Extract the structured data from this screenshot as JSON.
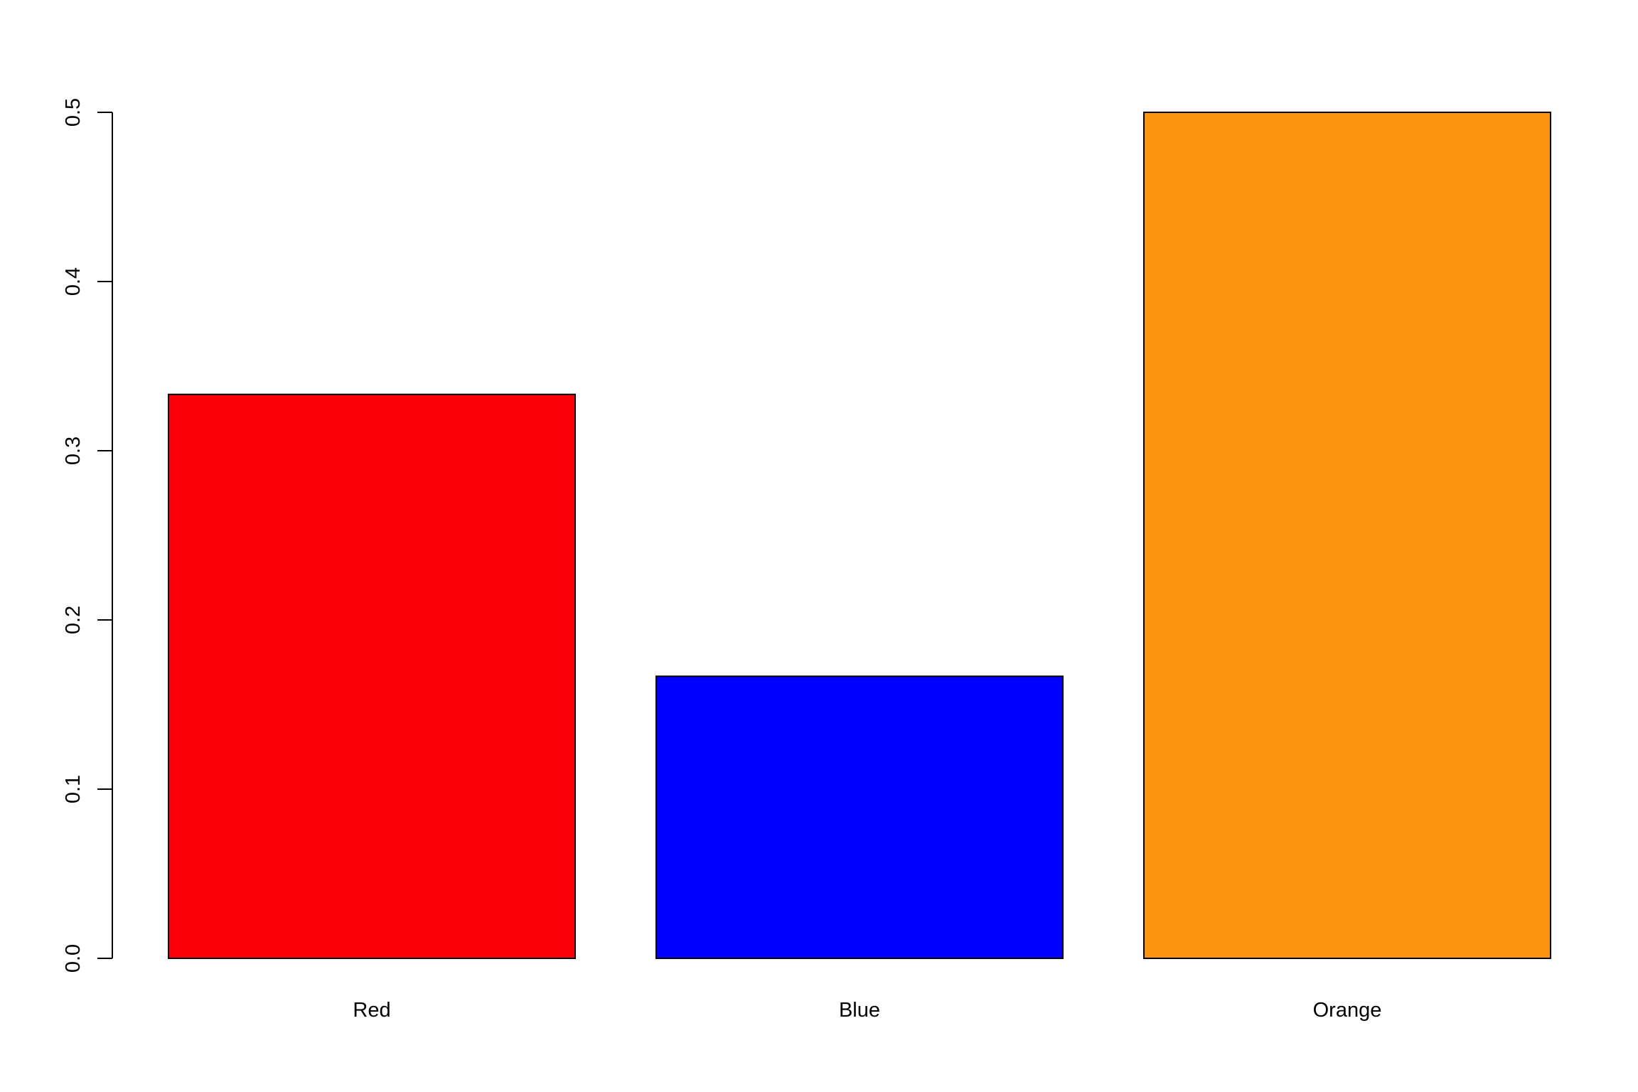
{
  "chart_data": {
    "type": "bar",
    "categories": [
      "Red",
      "Blue",
      "Orange"
    ],
    "values": [
      0.3333,
      0.1667,
      0.5
    ],
    "colors": [
      "#fa0007",
      "#0000ff",
      "#fd9410"
    ],
    "title": "",
    "xlabel": "",
    "ylabel": "",
    "ylim": [
      0,
      0.5
    ],
    "yticks": [
      "0.0",
      "0.1",
      "0.2",
      "0.3",
      "0.4",
      "0.5"
    ],
    "grid": false,
    "legend": "none"
  }
}
